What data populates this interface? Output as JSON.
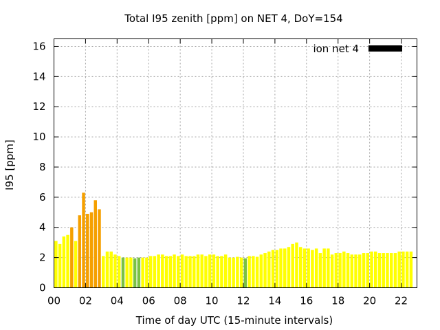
{
  "chart_data": {
    "type": "bar",
    "title": "Total I95 zenith [ppm] on NET 4, DoY=154",
    "xlabel": "Time of day UTC (15-minute intervals)",
    "ylabel": "I95 [ppm]",
    "xlim": [
      0,
      23
    ],
    "ylim": [
      0,
      16.5
    ],
    "x_ticks": [
      0,
      2,
      4,
      6,
      8,
      10,
      12,
      14,
      16,
      18,
      20,
      22
    ],
    "x_tick_labels": [
      "00",
      "02",
      "04",
      "06",
      "08",
      "10",
      "12",
      "14",
      "16",
      "18",
      "20",
      "22"
    ],
    "y_ticks": [
      0,
      2,
      4,
      6,
      8,
      10,
      12,
      14,
      16
    ],
    "y_tick_labels": [
      "0",
      "2",
      "4",
      "6",
      "8",
      "10",
      "12",
      "14",
      "16"
    ],
    "grid": true,
    "legend": {
      "position": "top-right",
      "entries": [
        {
          "label": "ion net 4",
          "color": "#000000"
        }
      ]
    },
    "bar_interval_hours": 0.25,
    "color_scale": {
      "green": "#7ac143",
      "yellow": "#ffff00",
      "orange": "#f5a000"
    },
    "values": [
      3.1,
      2.9,
      3.4,
      3.5,
      4.0,
      3.1,
      4.8,
      6.3,
      4.9,
      5.0,
      5.8,
      5.2,
      2.1,
      2.4,
      2.4,
      2.2,
      2.1,
      2.0,
      2.0,
      2.0,
      1.95,
      2.0,
      2.0,
      2.0,
      2.1,
      2.1,
      2.2,
      2.2,
      2.1,
      2.1,
      2.2,
      2.1,
      2.2,
      2.1,
      2.1,
      2.1,
      2.2,
      2.2,
      2.1,
      2.2,
      2.2,
      2.1,
      2.1,
      2.2,
      2.0,
      2.0,
      2.05,
      2.0,
      1.95,
      2.1,
      2.1,
      2.05,
      2.2,
      2.3,
      2.4,
      2.5,
      2.5,
      2.6,
      2.6,
      2.7,
      2.9,
      3.0,
      2.7,
      2.6,
      2.6,
      2.5,
      2.6,
      2.3,
      2.6,
      2.6,
      2.2,
      2.3,
      2.3,
      2.4,
      2.3,
      2.2,
      2.2,
      2.2,
      2.3,
      2.3,
      2.4,
      2.4,
      2.3,
      2.3,
      2.3,
      2.3,
      2.3,
      2.4,
      2.4,
      2.4,
      2.4
    ],
    "colors": [
      "yellow",
      "yellow",
      "yellow",
      "yellow",
      "orange",
      "yellow",
      "orange",
      "orange",
      "orange",
      "orange",
      "orange",
      "orange",
      "yellow",
      "yellow",
      "yellow",
      "yellow",
      "yellow",
      "green",
      "yellow",
      "yellow",
      "green",
      "green",
      "yellow",
      "yellow",
      "yellow",
      "yellow",
      "yellow",
      "yellow",
      "yellow",
      "yellow",
      "yellow",
      "yellow",
      "yellow",
      "yellow",
      "yellow",
      "yellow",
      "yellow",
      "yellow",
      "yellow",
      "yellow",
      "yellow",
      "yellow",
      "yellow",
      "yellow",
      "yellow",
      "yellow",
      "yellow",
      "yellow",
      "green",
      "yellow",
      "yellow",
      "yellow",
      "yellow",
      "yellow",
      "yellow",
      "yellow",
      "yellow",
      "yellow",
      "yellow",
      "yellow",
      "yellow",
      "yellow",
      "yellow",
      "yellow",
      "yellow",
      "yellow",
      "yellow",
      "yellow",
      "yellow",
      "yellow",
      "yellow",
      "yellow",
      "yellow",
      "yellow",
      "yellow",
      "yellow",
      "yellow",
      "yellow",
      "yellow",
      "yellow",
      "yellow",
      "yellow",
      "yellow",
      "yellow",
      "yellow",
      "yellow",
      "yellow",
      "yellow",
      "yellow",
      "yellow",
      "yellow"
    ]
  }
}
